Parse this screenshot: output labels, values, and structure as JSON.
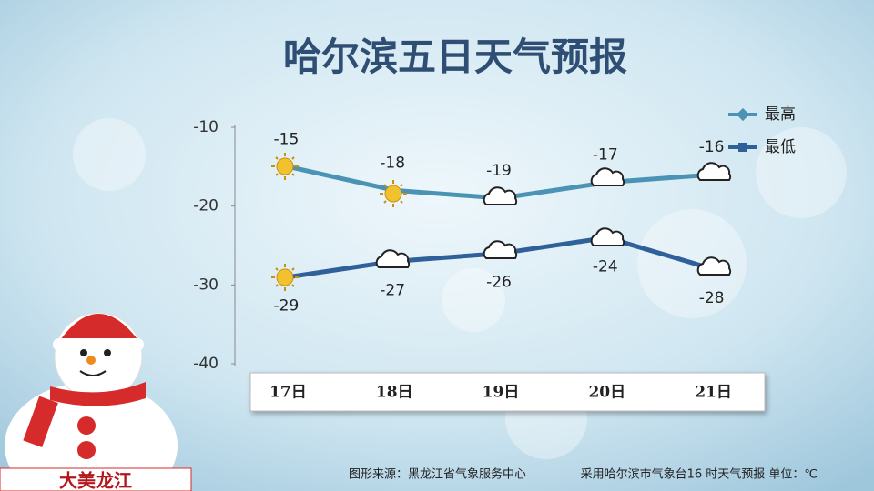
{
  "chart_data": {
    "type": "line",
    "title": "哈尔滨五日天气预报",
    "categories": [
      "17日",
      "18日",
      "19日",
      "20日",
      "21日"
    ],
    "series": [
      {
        "name": "最高",
        "color": "#4a93b5",
        "values": [
          -15,
          -18,
          -19,
          -17,
          -16
        ]
      },
      {
        "name": "最低",
        "color": "#30609a",
        "values": [
          -29,
          -27,
          -26,
          -24,
          -28
        ]
      }
    ],
    "ylim": [
      -40,
      -10
    ],
    "yticks": [
      -10,
      -20,
      -30,
      -40
    ],
    "grid": false,
    "legend": "top-right",
    "source": "图形来源：黑龙江省气象服务中心",
    "note": "采用哈尔滨市气象台16 时天气预报 单位：℃",
    "badge": "大美龙江"
  }
}
